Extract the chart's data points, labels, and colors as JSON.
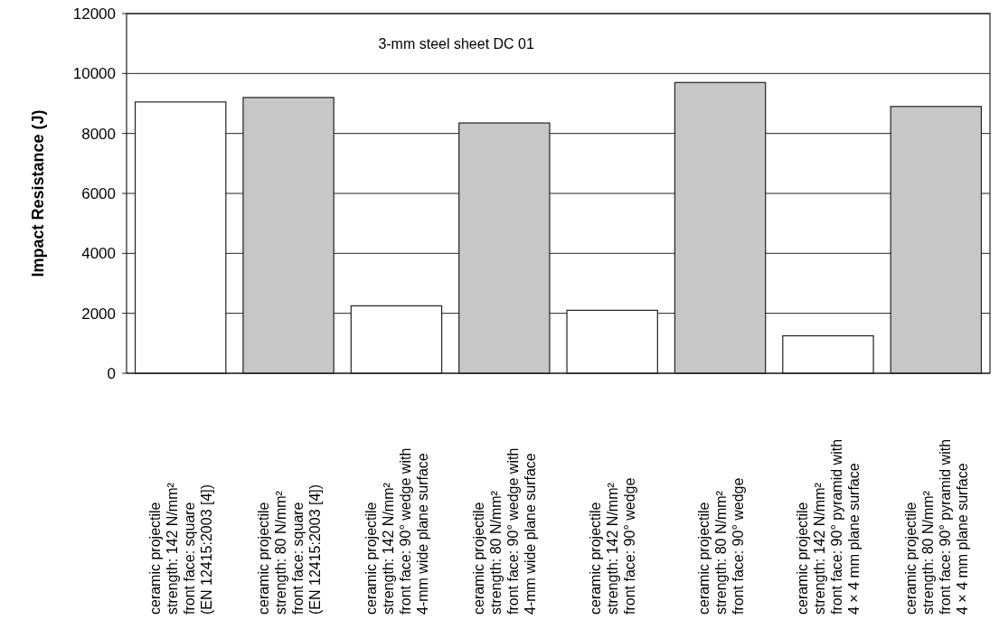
{
  "chart_data": {
    "type": "bar",
    "ylabel": "Impact Resistance (J)",
    "annotations": [
      "3-mm steel sheet DC 01"
    ],
    "categories": [
      "ceramic projectile\nstrength: 142 N/mm²\nfront face: square\n(EN 12415:2003 [4])",
      "ceramic projectile\nstrength: 80 N/mm²\nfront face: square\n(EN 12415:2003 [4])",
      "ceramic projectile\nstrength: 142 N/mm²\nfront face: 90° wedge with\n4-mm wide plane surface",
      "ceramic projectile\nstrength: 80 N/mm²\nfront face: 90° wedge with\n4-mm wide plane surface",
      "ceramic projectile\nstrength: 142 N/mm²\nfront face: 90° wedge",
      "ceramic projectile\nstrength: 80 N/mm²\nfront face: 90° wedge",
      "ceramic projectile\nstrength: 142 N/mm²\nfront face: 90° pyramid with\n4 × 4 mm plane surface",
      "ceramic projectile\nstrength: 80 N/mm²\nfront face: 90° pyramid with\n4 × 4 mm plane surface"
    ],
    "values": [
      9050,
      9200,
      2250,
      8350,
      2100,
      9700,
      1250,
      8900
    ],
    "colors": [
      "#ffffff",
      "#c6c7c9",
      "#ffffff",
      "#c6c7c9",
      "#ffffff",
      "#c6c7c9",
      "#ffffff",
      "#c6c7c9"
    ],
    "ylim": [
      0,
      12000
    ],
    "yticks": [
      0,
      2000,
      4000,
      6000,
      8000,
      10000,
      12000
    ],
    "grid": "y"
  }
}
